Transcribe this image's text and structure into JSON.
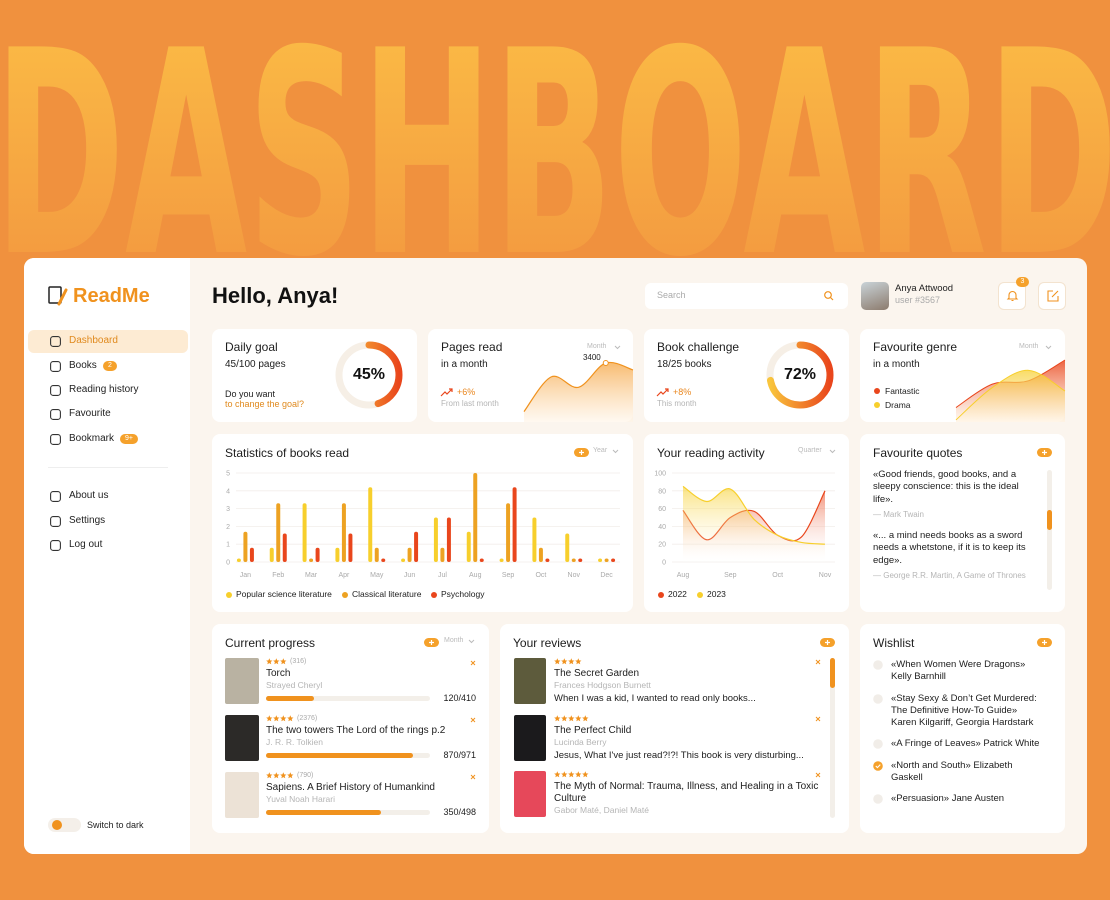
{
  "hero": {
    "title": "DASHBOARD"
  },
  "sidebar": {
    "logo": "ReadMe",
    "nav": [
      {
        "label": "Dashboard",
        "active": true
      },
      {
        "label": "Books",
        "badge": 2
      },
      {
        "label": "Reading history"
      },
      {
        "label": "Favourite"
      },
      {
        "label": "Bookmark",
        "badge": "9+"
      }
    ],
    "nav_bottom": [
      {
        "label": "About us"
      },
      {
        "label": "Settings"
      },
      {
        "label": "Log out"
      }
    ],
    "theme_toggle": "Switch to dark"
  },
  "header": {
    "greeting": "Hello, Anya!",
    "search_placeholder": "Search",
    "user_name": "Anya Attwood",
    "user_id": "user #3567",
    "notifications": 3
  },
  "daily_goal": {
    "title": "Daily goal",
    "pages": "45/100 pages",
    "prompt": "Do you want",
    "link": "to change the goal?",
    "progress": {
      "value": 45,
      "label": "45%"
    }
  },
  "pages_read": {
    "title": "Pages read",
    "subtitle": "in a month",
    "period": "Month",
    "color": "#f0921e",
    "values": [
      600,
      2600,
      2000,
      3400,
      3000
    ],
    "change": "+6%",
    "change_note": "From last month"
  },
  "book_challenge": {
    "title": "Book challenge",
    "books": "18/25 books",
    "progress": {
      "value": 72,
      "label": "72%"
    },
    "change": "+8%",
    "change_note": "This month"
  },
  "favourite_genre": {
    "title": "Favourite genre",
    "subtitle": "in a month",
    "period": "Month",
    "series": [
      {
        "name": "Fantastic",
        "color": "#e9461c",
        "values": [
          21,
          55,
          60,
          90
        ]
      },
      {
        "name": "Drama",
        "color": "#f7cf2c",
        "values": [
          3,
          50,
          75,
          45
        ]
      }
    ]
  },
  "chart_data": [
    {
      "type": "bar",
      "title": "Statistics of books read",
      "period": "Year",
      "categories": [
        "Jan",
        "Feb",
        "Mar",
        "Apr",
        "May",
        "Jun",
        "Jul",
        "Aug",
        "Sep",
        "Oct",
        "Nov",
        "Dec"
      ],
      "series": [
        {
          "name": "Popular science literature",
          "color": "#f7cf2c",
          "values": [
            0.2,
            0.8,
            3.3,
            0.8,
            4.2,
            0.2,
            2.5,
            1.7,
            0.2,
            2.5,
            1.6,
            0.2
          ]
        },
        {
          "name": "Classical literature",
          "color": "#eda222",
          "values": [
            1.7,
            3.3,
            0.2,
            3.3,
            0.8,
            0.8,
            0.8,
            5,
            3.3,
            0.8,
            0.2,
            0.2
          ]
        },
        {
          "name": "Psychology",
          "color": "#e9461c",
          "values": [
            0.8,
            1.6,
            0.8,
            1.6,
            0.2,
            1.7,
            2.5,
            0.2,
            4.2,
            0.2,
            0.2,
            0.2
          ]
        }
      ],
      "ylim": [
        0,
        5
      ],
      "yticks": [
        0,
        1,
        2,
        3,
        4,
        5
      ],
      "grid": true
    },
    {
      "type": "area",
      "title": "Your reading activity",
      "period": "Quarter",
      "categories": [
        "Aug",
        null,
        "Sep",
        null,
        "Oct",
        null,
        "Nov"
      ],
      "series": [
        {
          "name": "2022",
          "color": "#e9461c",
          "values": [
            58,
            25,
            50,
            57,
            30,
            28,
            80
          ]
        },
        {
          "name": "2023",
          "color": "#f7cf2c",
          "values": [
            85,
            68,
            82,
            48,
            30,
            22,
            20
          ]
        }
      ],
      "ylim": [
        0,
        100
      ],
      "yticks": [
        0,
        20,
        40,
        60,
        80,
        100
      ],
      "grid": true
    }
  ],
  "quotes": {
    "title": "Favourite quotes",
    "items": [
      {
        "text": "«Good friends, good books, and a sleepy conscience: this is the ideal life».",
        "author": "— Mark Twain"
      },
      {
        "text": "«... a mind needs books as a sword needs a whetstone, if it is to keep its edge».",
        "author": "— George R.R. Martin, A Game of Thrones"
      }
    ]
  },
  "current_progress": {
    "title": "Current progress",
    "period": "Month",
    "items": [
      {
        "rating": 3,
        "reviews": "(316)",
        "title": "Torch",
        "author": "Strayed Cheryl",
        "cover_color": "#b9b2a2",
        "pages": {
          "value": 120,
          "total": 410,
          "label": "120/410"
        }
      },
      {
        "rating": 4,
        "reviews": "(2376)",
        "title": "The two towers The Lord of the rings p.2",
        "author": "J. R. R. Tolkien",
        "cover_color": "#2c2a28",
        "pages": {
          "value": 870,
          "total": 971,
          "label": "870/971"
        }
      },
      {
        "rating": 4,
        "reviews": "(790)",
        "title": "Sapiens. A Brief History of Humankind",
        "author": "Yuval Noah Harari",
        "cover_color": "#ece2d6",
        "pages": {
          "value": 350,
          "total": 498,
          "label": "350/498"
        }
      }
    ]
  },
  "reviews": {
    "title": "Your reviews",
    "items": [
      {
        "rating": 4,
        "title": "The Secret Garden",
        "author": "Frances Hodgson Burnett",
        "cover_color": "#5d5b3c",
        "text": "When I was a kid, I wanted to read only books..."
      },
      {
        "rating": 5,
        "title": "The Perfect Child",
        "author": "Lucinda Berry",
        "cover_color": "#1b1a1c",
        "text": "Jesus, What I've just read?!?! This book is very disturbing..."
      },
      {
        "rating": 5,
        "title": "The Myth of Normal: Trauma, Illness, and Healing in a Toxic Culture",
        "author": "Gabor Maté, Daniel Maté",
        "cover_color": "#e6485a"
      }
    ]
  },
  "wishlist": {
    "title": "Wishlist",
    "items": [
      {
        "text": "«When Women Were Dragons» Kelly Barnhill",
        "checked": false
      },
      {
        "text": "«Stay Sexy & Don’t Get Murdered: The Definitive How-To Guide» Karen Kilgariff, Georgia Hardstark",
        "checked": false
      },
      {
        "text": "«A Fringe of Leaves» Patrick White",
        "checked": false
      },
      {
        "text": "«North and South» Elizabeth Gaskell",
        "checked": true
      },
      {
        "text": "«Persuasion» Jane Austen",
        "checked": false
      }
    ]
  }
}
